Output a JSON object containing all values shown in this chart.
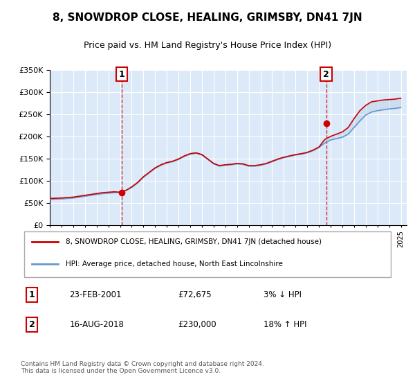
{
  "title": "8, SNOWDROP CLOSE, HEALING, GRIMSBY, DN41 7JN",
  "subtitle": "Price paid vs. HM Land Registry's House Price Index (HPI)",
  "ylabel_ticks": [
    "£0",
    "£50K",
    "£100K",
    "£150K",
    "£200K",
    "£250K",
    "£300K",
    "£350K"
  ],
  "ylim": [
    0,
    350000
  ],
  "yticks": [
    0,
    50000,
    100000,
    150000,
    200000,
    250000,
    300000,
    350000
  ],
  "background_color": "#dce9f8",
  "plot_bg": "#dce9f8",
  "grid_color": "#ffffff",
  "legend_label_red": "8, SNOWDROP CLOSE, HEALING, GRIMSBY, DN41 7JN (detached house)",
  "legend_label_blue": "HPI: Average price, detached house, North East Lincolnshire",
  "transaction1_date": "23-FEB-2001",
  "transaction1_price": 72675,
  "transaction1_label": "£72,675",
  "transaction1_hpi": "3% ↓ HPI",
  "transaction2_date": "16-AUG-2018",
  "transaction2_price": 230000,
  "transaction2_label": "£230,000",
  "transaction2_hpi": "18% ↑ HPI",
  "footer": "Contains HM Land Registry data © Crown copyright and database right 2024.\nThis data is licensed under the Open Government Licence v3.0.",
  "hpi_years": [
    1995,
    1995.5,
    1996,
    1996.5,
    1997,
    1997.5,
    1998,
    1998.5,
    1999,
    1999.5,
    2000,
    2000.5,
    2001,
    2001.5,
    2002,
    2002.5,
    2003,
    2003.5,
    2004,
    2004.5,
    2005,
    2005.5,
    2006,
    2006.5,
    2007,
    2007.5,
    2008,
    2008.5,
    2009,
    2009.5,
    2010,
    2010.5,
    2011,
    2011.5,
    2012,
    2012.5,
    2013,
    2013.5,
    2014,
    2014.5,
    2015,
    2015.5,
    2016,
    2016.5,
    2017,
    2017.5,
    2018,
    2018.5,
    2019,
    2019.5,
    2020,
    2020.5,
    2021,
    2021.5,
    2022,
    2022.5,
    2023,
    2023.5,
    2024,
    2024.5,
    2025
  ],
  "hpi_values": [
    58000,
    58500,
    59000,
    60000,
    61000,
    63000,
    65000,
    67000,
    69000,
    71000,
    72000,
    73000,
    74000,
    78000,
    85000,
    95000,
    108000,
    118000,
    128000,
    135000,
    140000,
    143000,
    148000,
    155000,
    160000,
    162000,
    158000,
    148000,
    138000,
    133000,
    135000,
    136000,
    138000,
    137000,
    133000,
    133000,
    135000,
    138000,
    143000,
    148000,
    152000,
    155000,
    158000,
    160000,
    163000,
    168000,
    175000,
    185000,
    192000,
    195000,
    198000,
    205000,
    220000,
    235000,
    248000,
    255000,
    258000,
    260000,
    262000,
    263000,
    265000
  ],
  "red_years": [
    1995,
    1995.5,
    1996,
    1996.5,
    1997,
    1997.5,
    1998,
    1998.5,
    1999,
    1999.5,
    2000,
    2000.5,
    2001,
    2001.5,
    2002,
    2002.5,
    2003,
    2003.5,
    2004,
    2004.5,
    2005,
    2005.5,
    2006,
    2006.5,
    2007,
    2007.5,
    2008,
    2008.5,
    2009,
    2009.5,
    2010,
    2010.5,
    2011,
    2011.5,
    2012,
    2012.5,
    2013,
    2013.5,
    2014,
    2014.5,
    2015,
    2015.5,
    2016,
    2016.5,
    2017,
    2017.5,
    2018,
    2018.5,
    2019,
    2019.5,
    2020,
    2020.5,
    2021,
    2021.5,
    2022,
    2022.5,
    2023,
    2023.5,
    2024,
    2024.5,
    2025
  ],
  "red_values": [
    60000,
    60500,
    61000,
    62000,
    63000,
    65000,
    67000,
    69000,
    71000,
    73000,
    74000,
    75000,
    74000,
    78000,
    86000,
    96000,
    109000,
    119000,
    129000,
    136000,
    141000,
    144000,
    149000,
    156000,
    161000,
    163000,
    159000,
    149000,
    139000,
    134000,
    136000,
    137000,
    139000,
    138000,
    134000,
    134000,
    136000,
    139000,
    144000,
    149000,
    153000,
    156000,
    159000,
    161000,
    164000,
    169000,
    176000,
    193000,
    200000,
    205000,
    210000,
    220000,
    240000,
    258000,
    270000,
    278000,
    280000,
    282000,
    283000,
    284000,
    286000
  ],
  "transaction1_x": 2001.15,
  "transaction2_x": 2018.62,
  "red_color": "#cc0000",
  "blue_color": "#6699cc",
  "marker_color": "#cc0000",
  "vline_color": "#cc0000",
  "box_color": "#cc0000"
}
